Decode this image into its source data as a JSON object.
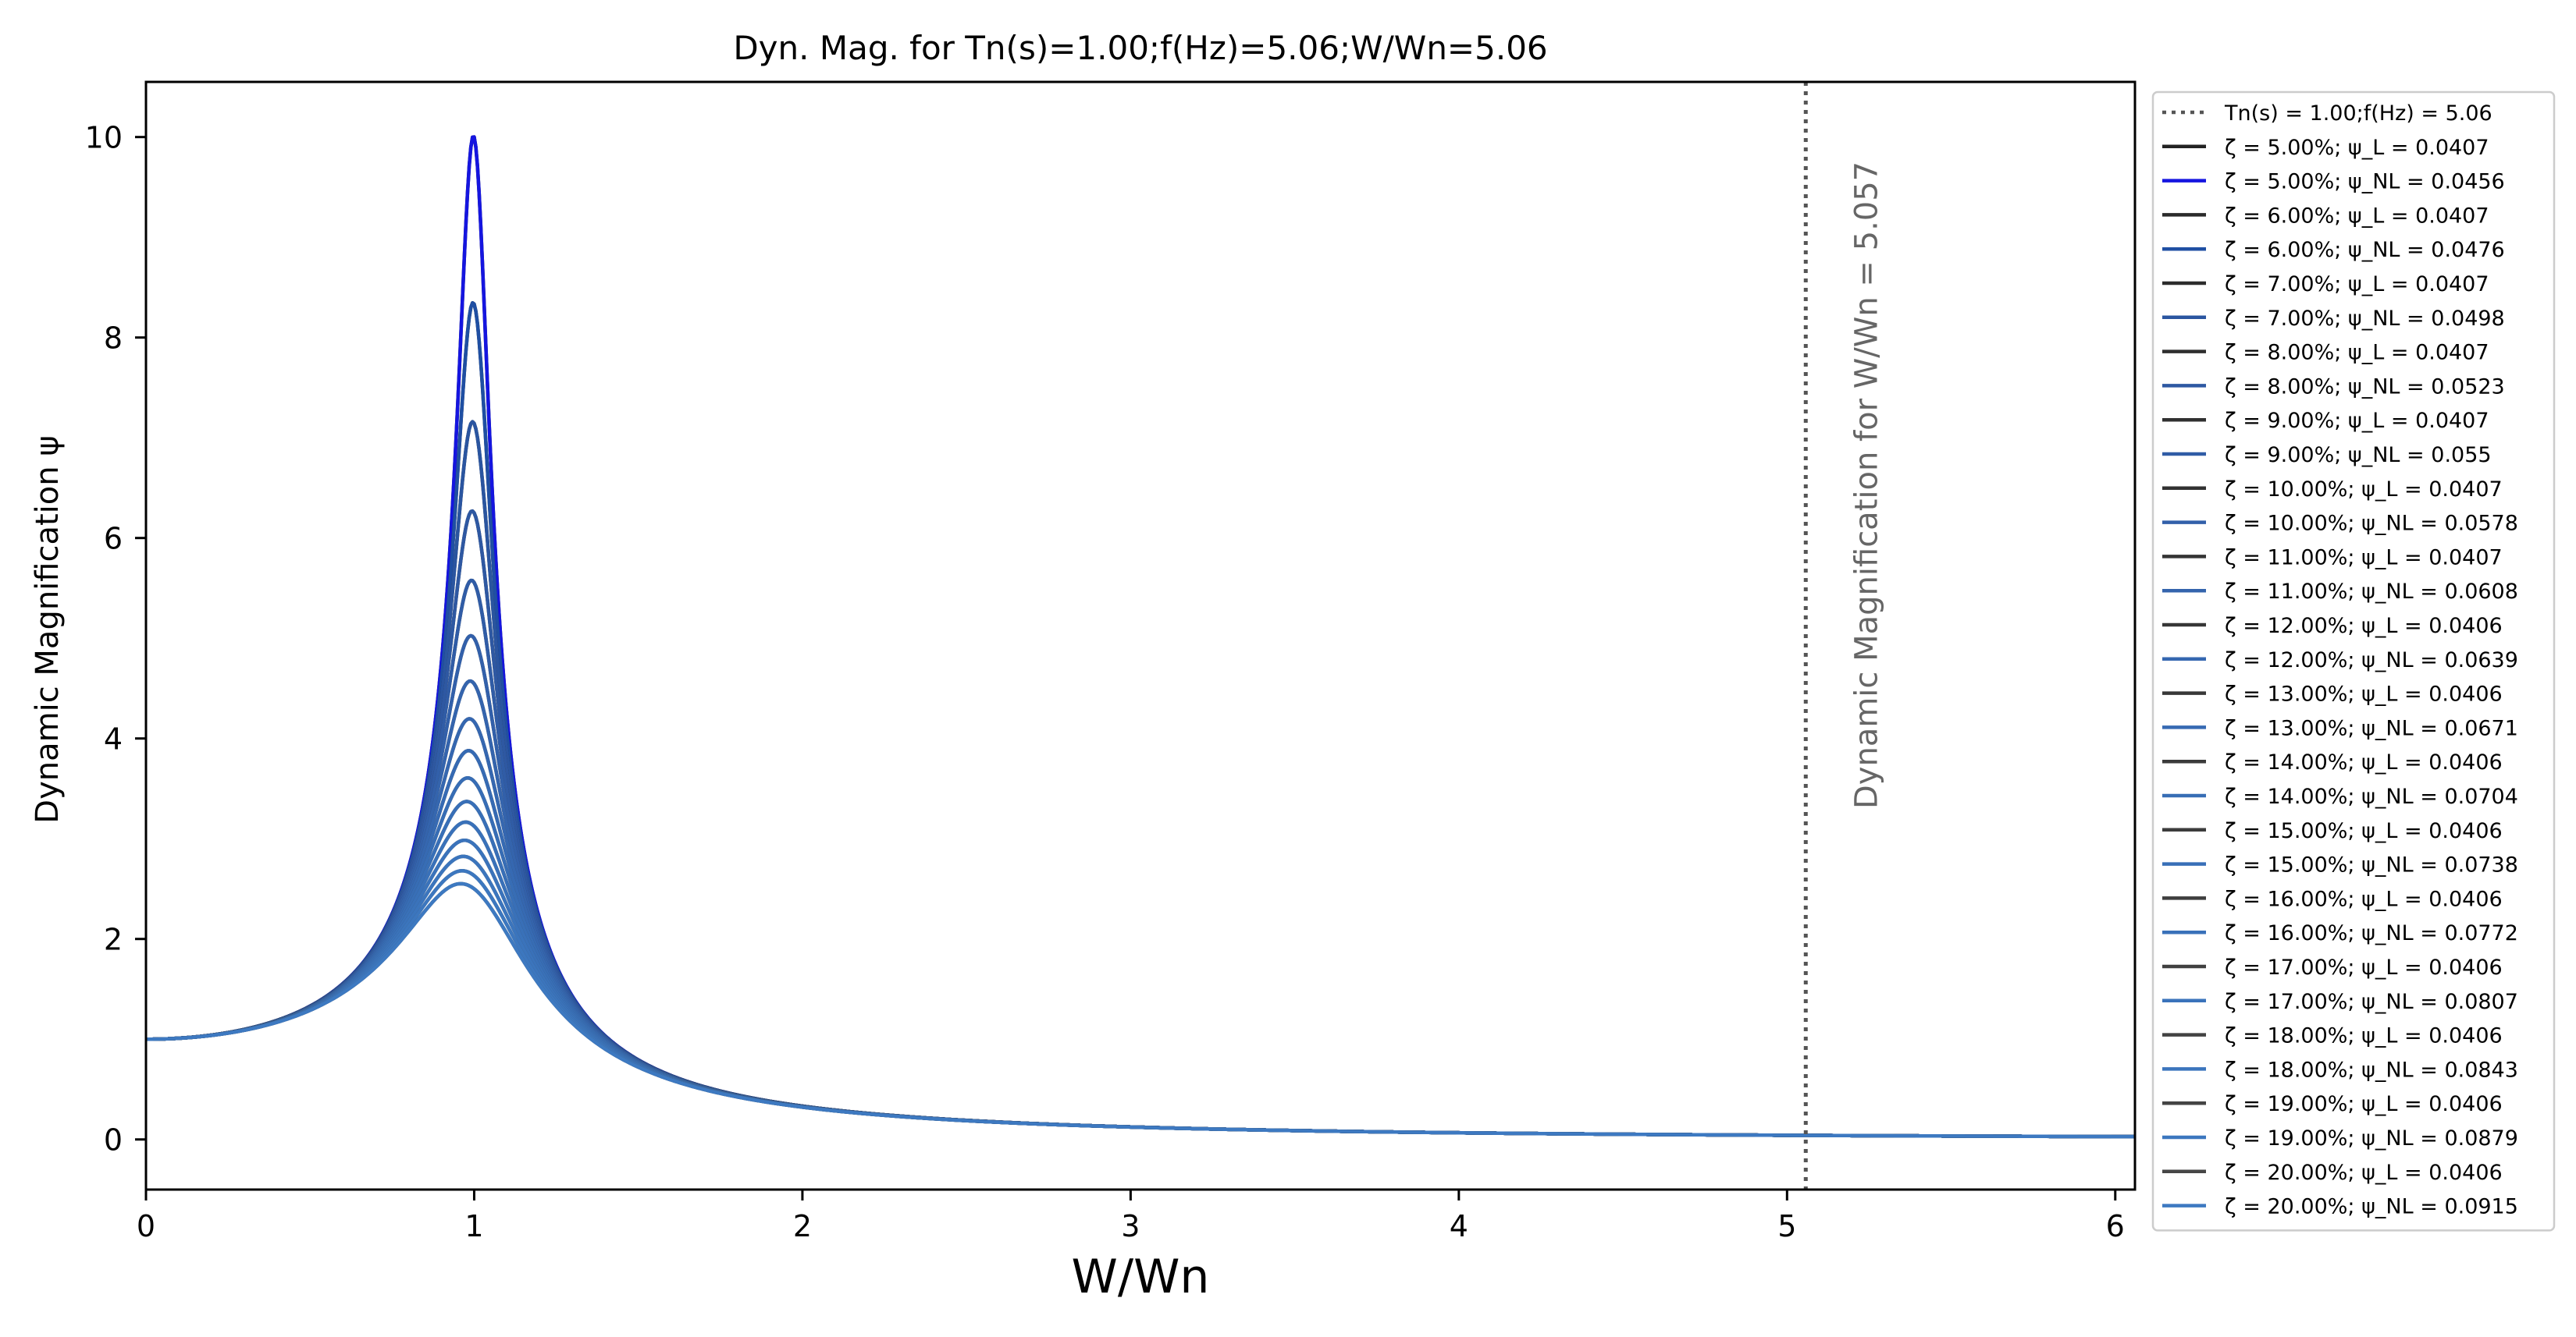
{
  "chart_data": {
    "type": "line",
    "title": "Dyn. Mag. for Tn(s)=1.00;f(Hz)=5.06;W/Wn=5.06",
    "xlabel": "W/Wn",
    "ylabel": "Dynamic Magnification ψ",
    "xlim": [
      0,
      6.06
    ],
    "ylim": [
      -0.5,
      10.55
    ],
    "xticks": [
      0,
      1,
      2,
      3,
      4,
      5,
      6
    ],
    "yticks": [
      0,
      2,
      4,
      6,
      8,
      10
    ],
    "grid": false,
    "legend_position": "outside-right",
    "vline": {
      "x": 5.057,
      "label": "Dynamic Magnification for W/Wn = 5.057",
      "legend_label": "Tn(s) = 1.00;f(Hz) = 5.06",
      "color": "#555555"
    },
    "curve_model": "psi = 1/sqrt((1-r^2)^2 + (2*zeta*r)^2), r = W/Wn",
    "series": [
      {
        "name": "ζ = 5.00%; ψ_L = 0.0407",
        "zeta": 0.05,
        "color": "#222222"
      },
      {
        "name": "ζ = 5.00%; ψ_NL = 0.0456",
        "zeta": 0.05,
        "color": "#1515e0"
      },
      {
        "name": "ζ = 6.00%; ψ_L = 0.0407",
        "zeta": 0.06,
        "color": "#2a2a2a"
      },
      {
        "name": "ζ = 6.00%; ψ_NL = 0.0476",
        "zeta": 0.06,
        "color": "#1f4fa3"
      },
      {
        "name": "ζ = 7.00%; ψ_L = 0.0407",
        "zeta": 0.07,
        "color": "#2c2c2c"
      },
      {
        "name": "ζ = 7.00%; ψ_NL = 0.0498",
        "zeta": 0.07,
        "color": "#2a55a0"
      },
      {
        "name": "ζ = 8.00%; ψ_L = 0.0407",
        "zeta": 0.08,
        "color": "#2e2e2e"
      },
      {
        "name": "ζ = 8.00%; ψ_NL = 0.0523",
        "zeta": 0.08,
        "color": "#2e58a2"
      },
      {
        "name": "ζ = 9.00%; ψ_L = 0.0407",
        "zeta": 0.09,
        "color": "#303030"
      },
      {
        "name": "ζ = 9.00%; ψ_NL = 0.055",
        "zeta": 0.09,
        "color": "#305ca6"
      },
      {
        "name": "ζ = 10.00%; ψ_L = 0.0407",
        "zeta": 0.1,
        "color": "#323232"
      },
      {
        "name": "ζ = 10.00%; ψ_NL = 0.0578",
        "zeta": 0.1,
        "color": "#3260aa"
      },
      {
        "name": "ζ = 11.00%; ψ_L = 0.0407",
        "zeta": 0.11,
        "color": "#343434"
      },
      {
        "name": "ζ = 11.00%; ψ_NL = 0.0608",
        "zeta": 0.11,
        "color": "#3464ad"
      },
      {
        "name": "ζ = 12.00%; ψ_L = 0.0406",
        "zeta": 0.12,
        "color": "#363636"
      },
      {
        "name": "ζ = 12.00%; ψ_NL = 0.0639",
        "zeta": 0.12,
        "color": "#3567b0"
      },
      {
        "name": "ζ = 13.00%; ψ_L = 0.0406",
        "zeta": 0.13,
        "color": "#383838"
      },
      {
        "name": "ζ = 13.00%; ψ_NL = 0.0671",
        "zeta": 0.13,
        "color": "#366ab3"
      },
      {
        "name": "ζ = 14.00%; ψ_L = 0.0406",
        "zeta": 0.14,
        "color": "#3a3a3a"
      },
      {
        "name": "ζ = 14.00%; ψ_NL = 0.0704",
        "zeta": 0.14,
        "color": "#376db5"
      },
      {
        "name": "ζ = 15.00%; ψ_L = 0.0406",
        "zeta": 0.15,
        "color": "#3c3c3c"
      },
      {
        "name": "ζ = 15.00%; ψ_NL = 0.0738",
        "zeta": 0.15,
        "color": "#386fb7"
      },
      {
        "name": "ζ = 16.00%; ψ_L = 0.0406",
        "zeta": 0.16,
        "color": "#3e3e3e"
      },
      {
        "name": "ζ = 16.00%; ψ_NL = 0.0772",
        "zeta": 0.16,
        "color": "#3971b9"
      },
      {
        "name": "ζ = 17.00%; ψ_L = 0.0406",
        "zeta": 0.17,
        "color": "#404040"
      },
      {
        "name": "ζ = 17.00%; ψ_NL = 0.0807",
        "zeta": 0.17,
        "color": "#3a73bb"
      },
      {
        "name": "ζ = 18.00%; ψ_L = 0.0406",
        "zeta": 0.18,
        "color": "#424242"
      },
      {
        "name": "ζ = 18.00%; ψ_NL = 0.0843",
        "zeta": 0.18,
        "color": "#3b75bd"
      },
      {
        "name": "ζ = 19.00%; ψ_L = 0.0406",
        "zeta": 0.19,
        "color": "#444444"
      },
      {
        "name": "ζ = 19.00%; ψ_NL = 0.0879",
        "zeta": 0.19,
        "color": "#3c77bf"
      },
      {
        "name": "ζ = 20.00%; ψ_L = 0.0406",
        "zeta": 0.2,
        "color": "#464646"
      },
      {
        "name": "ζ = 20.00%; ψ_NL = 0.0915",
        "zeta": 0.2,
        "color": "#3d79c1"
      }
    ]
  }
}
